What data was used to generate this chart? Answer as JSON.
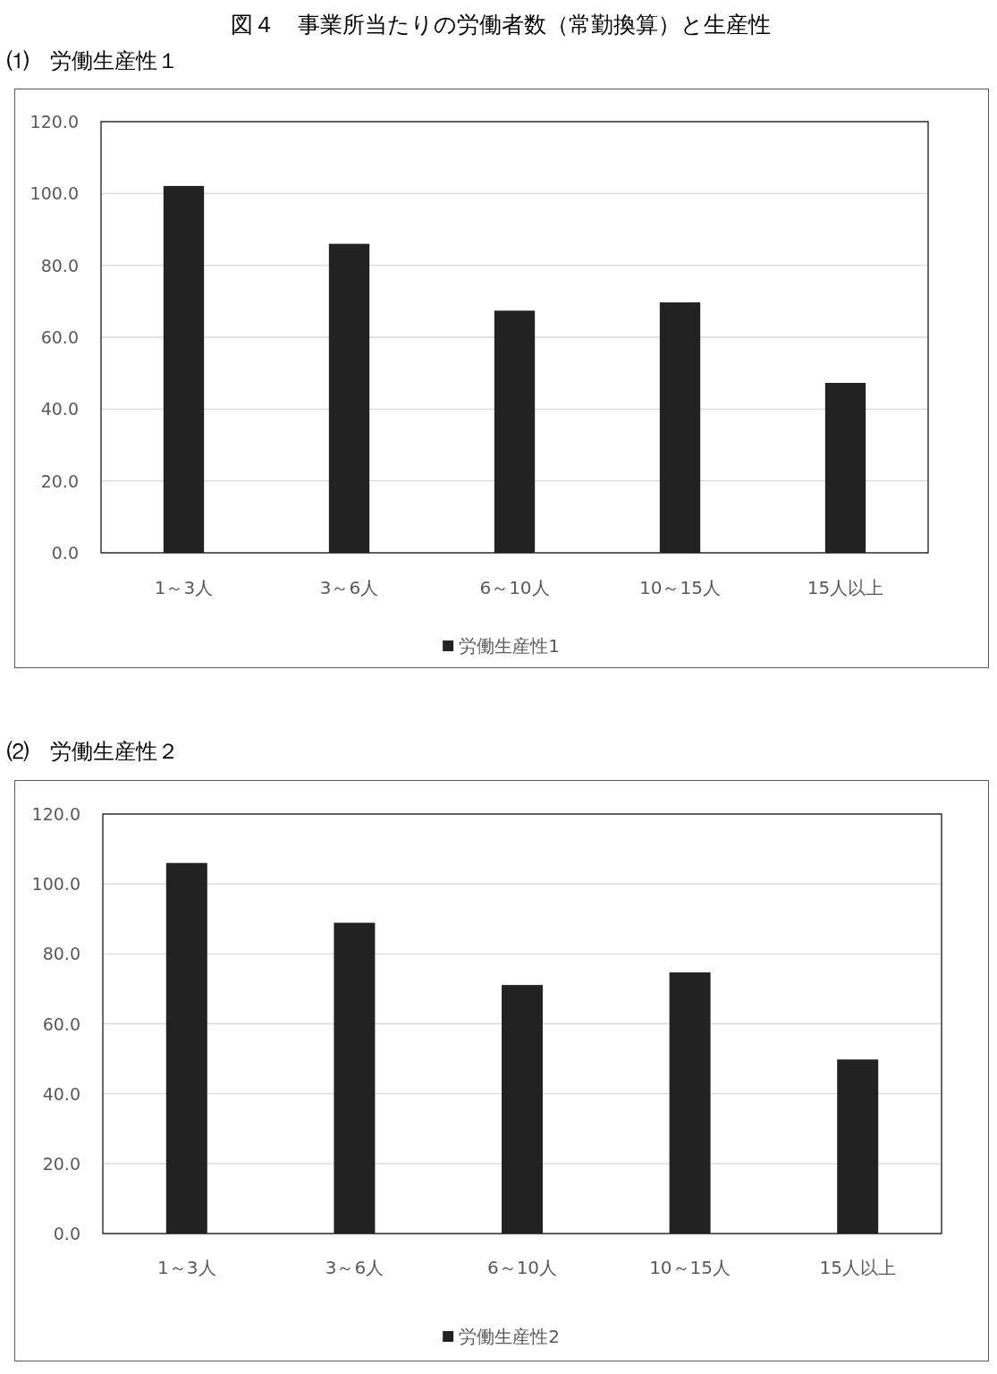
{
  "chart_data": [
    {
      "type": "bar",
      "title": "図４　事業所当たりの労働者数（常勤換算）と生産性",
      "subtitle": "⑴　労働生産性１",
      "categories": [
        "1～3人",
        "3～6人",
        "6～10人",
        "10～15人",
        "15人以上"
      ],
      "series": [
        {
          "name": "労働生産性1",
          "color": "#222222",
          "values": [
            102.1,
            86.0,
            67.4,
            69.7,
            47.3
          ]
        }
      ],
      "ylim": [
        0,
        120
      ],
      "yticks": [
        {
          "value": 0,
          "label": "0.0"
        },
        {
          "value": 20,
          "label": "20.0"
        },
        {
          "value": 40,
          "label": "40.0"
        },
        {
          "value": 60,
          "label": "60.0"
        },
        {
          "value": 80,
          "label": "80.0"
        },
        {
          "value": 100,
          "label": "100.0"
        },
        {
          "value": 120,
          "label": "120.0"
        }
      ],
      "grid": "y",
      "legend": "bottom"
    },
    {
      "type": "bar",
      "subtitle": "⑵　労働生産性２",
      "categories": [
        "1～3人",
        "3～6人",
        "6～10人",
        "10～15人",
        "15人以上"
      ],
      "series": [
        {
          "name": "労働生産性2",
          "color": "#222222",
          "values": [
            106.0,
            88.9,
            71.1,
            74.7,
            49.8
          ]
        }
      ],
      "ylim": [
        0,
        120
      ],
      "yticks": [
        {
          "value": 0,
          "label": "0.0"
        },
        {
          "value": 20,
          "label": "20.0"
        },
        {
          "value": 40,
          "label": "40.0"
        },
        {
          "value": 60,
          "label": "60.0"
        },
        {
          "value": 80,
          "label": "80.0"
        },
        {
          "value": 100,
          "label": "100.0"
        },
        {
          "value": 120,
          "label": "120.0"
        }
      ],
      "grid": "y",
      "legend": "bottom"
    }
  ]
}
